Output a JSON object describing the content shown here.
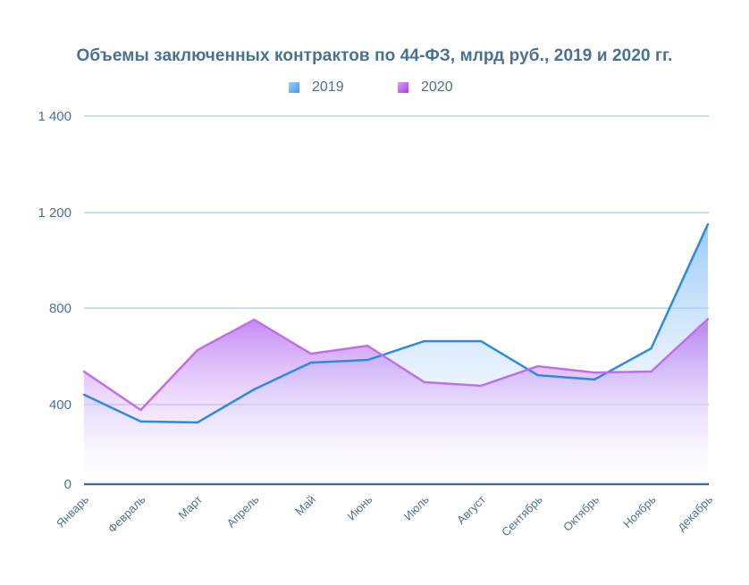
{
  "chart_data": {
    "type": "area",
    "title": "Объемы заключенных контрактов по 44-ФЗ, млрд руб., 2019 и 2020 гг.",
    "categories": [
      "Январь",
      "Февраль",
      "Март",
      "Апрель",
      "Май",
      "Июнь",
      "Июль",
      "Август",
      "Сентябрь",
      "Октябрь",
      "Ноябрь",
      "декабрь"
    ],
    "y_ticks": [
      0,
      400,
      800,
      1200,
      1400
    ],
    "y_tick_labels": [
      "0",
      "400",
      "800",
      "1 200",
      "1 400"
    ],
    "grid": true,
    "legend_position": "top",
    "series": [
      {
        "name": "2019",
        "color": "#2b8be0",
        "values": [
          441,
          315,
          310,
          463,
          574,
          585,
          663,
          663,
          522,
          504,
          633,
          1151
        ]
      },
      {
        "name": "2020",
        "color": "#c36ee8",
        "values": [
          537,
          373,
          626,
          752,
          611,
          644,
          493,
          478,
          559,
          533,
          537,
          755
        ]
      }
    ]
  }
}
